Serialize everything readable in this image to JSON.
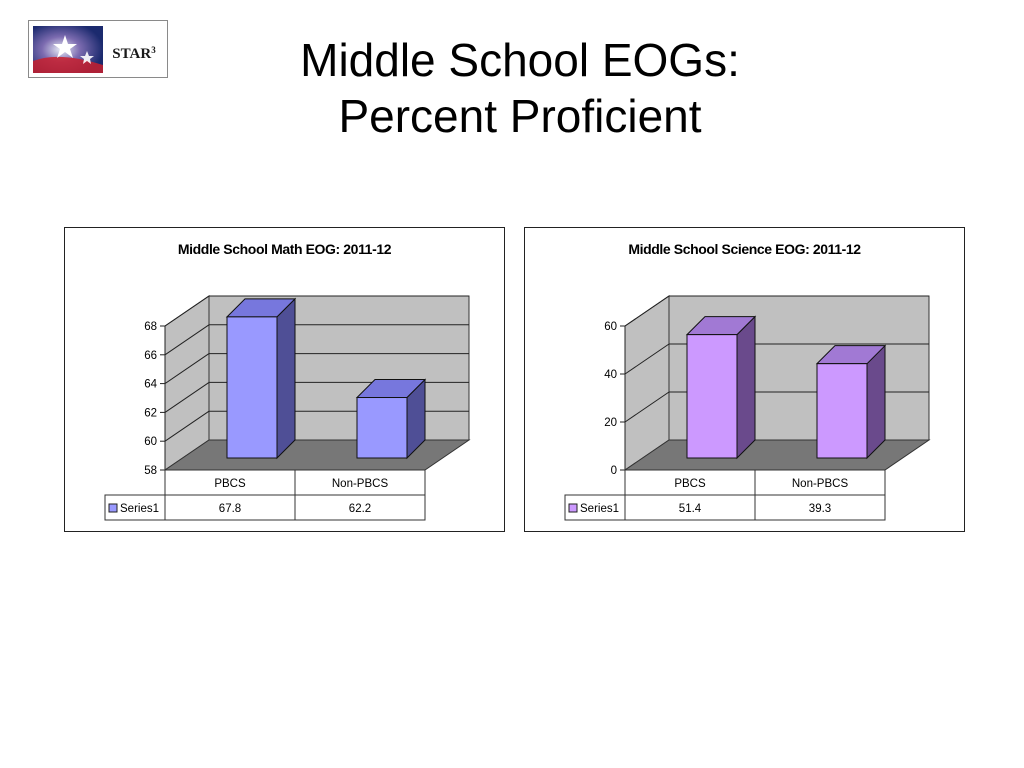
{
  "slide": {
    "title_line1": "Middle School EOGs:",
    "title_line2": "Percent Proficient",
    "logo_text": "STAR",
    "logo_sup": "3"
  },
  "colors": {
    "math_front": "#9999ff",
    "math_side": "#4f4f96",
    "math_top": "#7777dd",
    "science_front": "#cc99ff",
    "science_side": "#6a4a8c",
    "science_top": "#a179d4",
    "wall": "#c0c0c0",
    "floor": "#777777"
  },
  "chart_data": [
    {
      "type": "bar",
      "title": "Middle School Math EOG: 2011-12",
      "categories": [
        "PBCS",
        "Non-PBCS"
      ],
      "series": [
        {
          "name": "Series1",
          "values": [
            67.8,
            62.2
          ]
        }
      ],
      "value_labels": [
        "67.8",
        "62.2"
      ],
      "ylim": [
        58,
        68
      ],
      "yticks": [
        58,
        60,
        62,
        64,
        66,
        68
      ],
      "grid": true,
      "legend": "data-table",
      "style": "3d"
    },
    {
      "type": "bar",
      "title": "Middle School Science EOG: 2011-12",
      "categories": [
        "PBCS",
        "Non-PBCS"
      ],
      "series": [
        {
          "name": "Series1",
          "values": [
            51.4,
            39.3
          ]
        }
      ],
      "value_labels": [
        "51.4",
        "39.3"
      ],
      "ylim": [
        0,
        60
      ],
      "yticks": [
        0,
        20,
        40,
        60
      ],
      "grid": true,
      "legend": "data-table",
      "style": "3d"
    }
  ]
}
